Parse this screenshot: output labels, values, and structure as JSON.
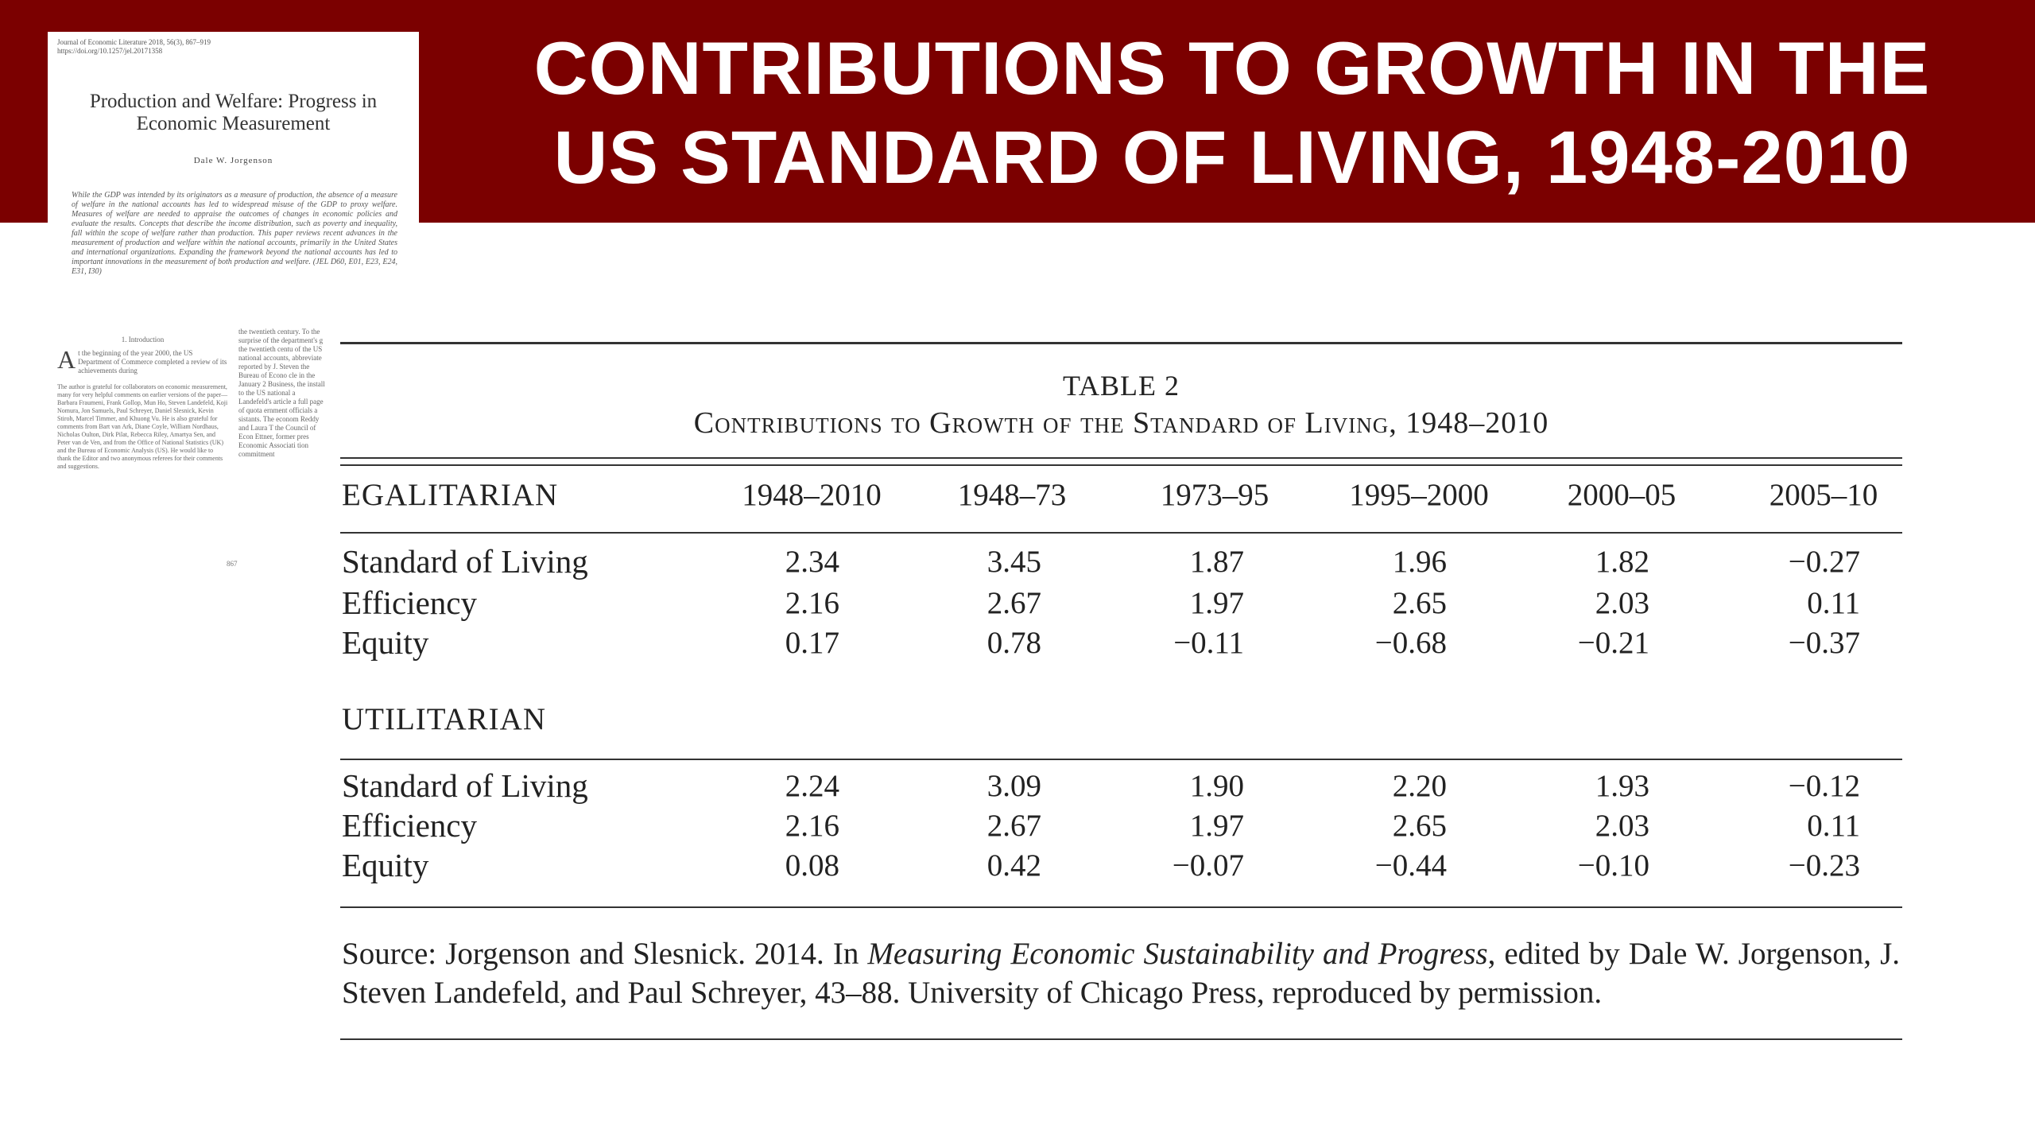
{
  "slide": {
    "title_line1": "CONTRIBUTIONS TO GROWTH IN THE",
    "title_line2": "US STANDARD OF LIVING, 1948-2010"
  },
  "paper_thumbnail": {
    "journal_line1": "Journal of Economic Literature 2018, 56(3), 867–919",
    "journal_line2": "https://doi.org/10.1257/jel.20171358",
    "title": "Production and Welfare: Progress in Economic Measurement",
    "author": "Dale W. Jorgenson",
    "abstract": "While the GDP was intended by its originators as a measure of production, the absence of a measure of welfare in the national accounts has led to widespread misuse of the GDP to proxy welfare. Measures of welfare are needed to appraise the outcomes of changes in economic policies and evaluate the results. Concepts that describe the income distribution, such as poverty and inequality, fall within the scope of welfare rather than production. This paper reviews recent advances in the measurement of production and welfare within the national accounts, primarily in the United States and international organizations. Expanding the framework beyond the national accounts has led to important innovations in the measurement of both production and welfare. (JEL D60, E01, E23, E24, E31, I30)",
    "intro_heading": "1. Introduction",
    "intro_text": "t the beginning of the year 2000, the US Department of Commerce completed a review of its achievements during",
    "footnote": "The author is grateful for collaborators on economic measurement, many for very helpful comments on earlier versions of the paper—Barbara Fraumeni, Frank Gollop, Mun Ho, Steven Landefeld, Koji Nomura, Jon Samuels, Paul Schreyer, Daniel Slesnick, Kevin Stiroh, Marcel Timmer, and Khuong Vu. He is also grateful for comments from Bart van Ark, Diane Coyle, William Nordhaus, Nicholas Oulton, Dirk Pilat, Rebecca Riley, Amartya Sen, and Peter van de Ven, and from the Office of National Statistics (UK) and the Bureau of Economic Analysis (US). He would like to thank the Editor and two anonymous referees for their comments and suggestions.",
    "col2_text": "the twentieth century. To the surprise of the department's g the twentieth centu of the US national accounts, abbreviate reported by J. Steven the Bureau of Econo cle in the January 2 Business, the install to the US national a Landefeld's article a full page of quota ernment officials a sistants. The econom Reddy and Laura T the Council of Econ Ettner, former pres Economic Associati tion commitment",
    "page_number": "867"
  },
  "table": {
    "label": "TABLE 2",
    "caption": "Contributions to Growth of the Standard of Living, 1948–2010",
    "columns": [
      "1948–2010",
      "1948–73",
      "1973–95",
      "1995–2000",
      "2000–05",
      "2005–10"
    ],
    "sections": [
      {
        "name": "EGALITARIAN",
        "rows": [
          {
            "label": "Standard of Living",
            "values": [
              "2.34",
              "3.45",
              "1.87",
              "1.96",
              "1.82",
              "−0.27"
            ]
          },
          {
            "label": "Efficiency",
            "values": [
              "2.16",
              "2.67",
              "1.97",
              "2.65",
              "2.03",
              "0.11"
            ]
          },
          {
            "label": "Equity",
            "values": [
              "0.17",
              "0.78",
              "−0.11",
              "−0.68",
              "−0.21",
              "−0.37"
            ]
          }
        ]
      },
      {
        "name": "UTILITARIAN",
        "rows": [
          {
            "label": "Standard of Living",
            "values": [
              "2.24",
              "3.09",
              "1.90",
              "2.20",
              "1.93",
              "−0.12"
            ]
          },
          {
            "label": "Efficiency",
            "values": [
              "2.16",
              "2.67",
              "1.97",
              "2.65",
              "2.03",
              "0.11"
            ]
          },
          {
            "label": "Equity",
            "values": [
              "0.08",
              "0.42",
              "−0.07",
              "−0.44",
              "−0.10",
              "−0.23"
            ]
          }
        ]
      }
    ],
    "source_prefix": "Source: Jorgenson and Slesnick. 2014. In ",
    "source_book": "Measuring Economic Sustainability and Progress",
    "source_suffix": ", edited by Dale W. Jorgenson, J. Steven Landefeld, and Paul Schreyer, 43–88. University of Chicago Press, reproduced by permission."
  }
}
